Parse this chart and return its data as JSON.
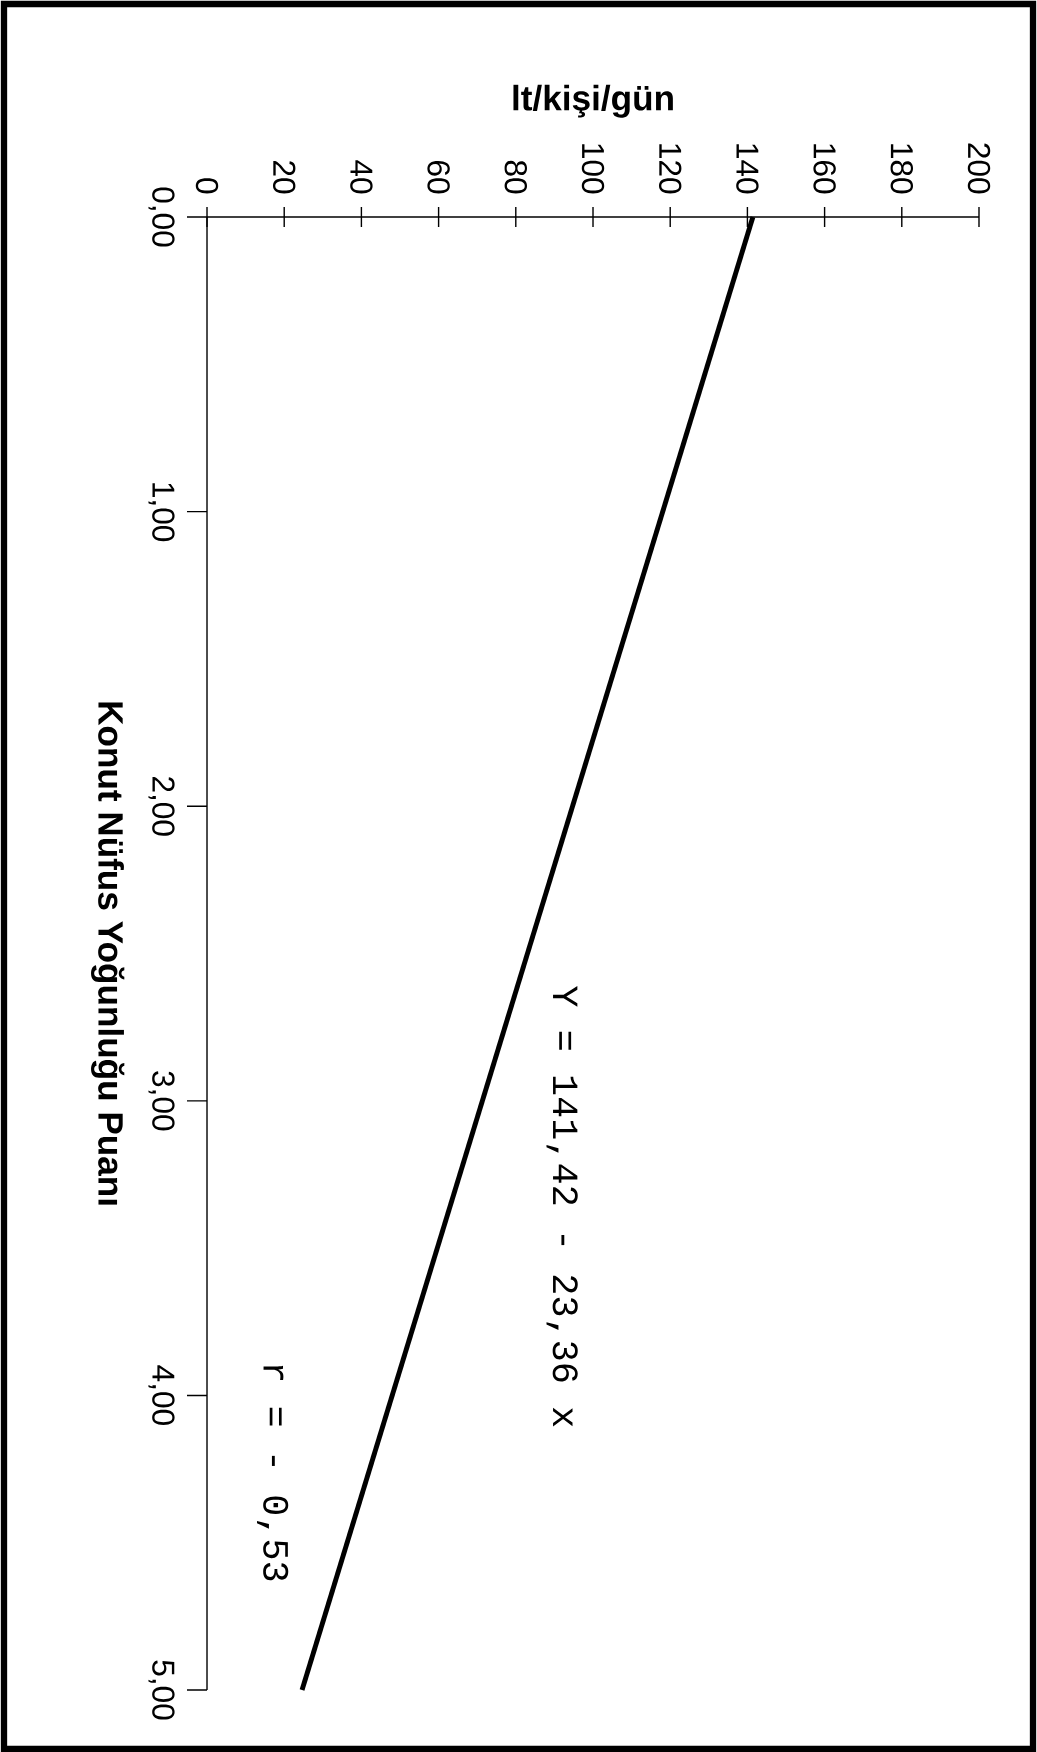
{
  "chart_data": {
    "type": "line",
    "xlabel": "lt/kişi/gün",
    "ylabel": "Konut Nüfus Yoğunluğu Puanı",
    "x": [
      141.42,
      24.62
    ],
    "series": [
      {
        "color": "#000000",
        "values": [
          0,
          5
        ]
      }
    ],
    "xlim": [
      0,
      200
    ],
    "ylim": [
      5,
      0
    ],
    "xticks": [
      0,
      20,
      40,
      60,
      80,
      100,
      120,
      140,
      160,
      180,
      200
    ],
    "yticks": [
      {
        "value": 0,
        "label": "0,00"
      },
      {
        "value": 1,
        "label": "1,00"
      },
      {
        "value": 2,
        "label": "2,00"
      },
      {
        "value": 3,
        "label": "3,00"
      },
      {
        "value": 4,
        "label": "4,00"
      },
      {
        "value": 5,
        "label": "5,00"
      }
    ],
    "annotations": [
      "Y = 141,42 - 23,36 x",
      "r = - 0,53"
    ],
    "marker": "none",
    "line_style": "solid"
  }
}
